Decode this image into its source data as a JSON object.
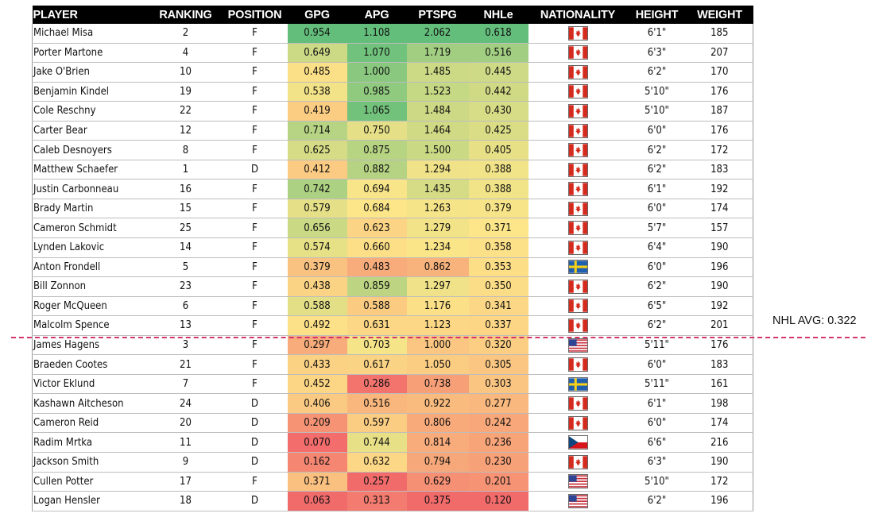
{
  "chart_data": {
    "type": "table",
    "columns": [
      "PLAYER",
      "RANKING",
      "POSITION",
      "GPG",
      "APG",
      "PTSPG",
      "NHLe",
      "NATIONALITY",
      "HEIGHT",
      "WEIGHT"
    ],
    "heatmap_columns": [
      "GPG",
      "APG",
      "PTSPG",
      "NHLe"
    ],
    "rows": [
      {
        "player": "Michael Misa",
        "ranking": "2",
        "position": "F",
        "gpg": "0.954",
        "apg": "1.108",
        "ptspg": "2.062",
        "nhle": "0.618",
        "nationality": "canada-flag-icon",
        "height": "6'1\"",
        "weight": "185"
      },
      {
        "player": "Porter Martone",
        "ranking": "4",
        "position": "F",
        "gpg": "0.649",
        "apg": "1.070",
        "ptspg": "1.719",
        "nhle": "0.516",
        "nationality": "canada-flag-icon",
        "height": "6'3\"",
        "weight": "207"
      },
      {
        "player": "Jake O'Brien",
        "ranking": "10",
        "position": "F",
        "gpg": "0.485",
        "apg": "1.000",
        "ptspg": "1.485",
        "nhle": "0.445",
        "nationality": "canada-flag-icon",
        "height": "6'2\"",
        "weight": "170"
      },
      {
        "player": "Benjamin Kindel",
        "ranking": "19",
        "position": "F",
        "gpg": "0.538",
        "apg": "0.985",
        "ptspg": "1.523",
        "nhle": "0.442",
        "nationality": "canada-flag-icon",
        "height": "5'10\"",
        "weight": "176"
      },
      {
        "player": "Cole Reschny",
        "ranking": "22",
        "position": "F",
        "gpg": "0.419",
        "apg": "1.065",
        "ptspg": "1.484",
        "nhle": "0.430",
        "nationality": "canada-flag-icon",
        "height": "5'10\"",
        "weight": "187"
      },
      {
        "player": "Carter Bear",
        "ranking": "12",
        "position": "F",
        "gpg": "0.714",
        "apg": "0.750",
        "ptspg": "1.464",
        "nhle": "0.425",
        "nationality": "canada-flag-icon",
        "height": "6'0\"",
        "weight": "176"
      },
      {
        "player": "Caleb Desnoyers",
        "ranking": "8",
        "position": "F",
        "gpg": "0.625",
        "apg": "0.875",
        "ptspg": "1.500",
        "nhle": "0.405",
        "nationality": "canada-flag-icon",
        "height": "6'2\"",
        "weight": "172"
      },
      {
        "player": "Matthew Schaefer",
        "ranking": "1",
        "position": "D",
        "gpg": "0.412",
        "apg": "0.882",
        "ptspg": "1.294",
        "nhle": "0.388",
        "nationality": "canada-flag-icon",
        "height": "6'2\"",
        "weight": "183"
      },
      {
        "player": "Justin Carbonneau",
        "ranking": "16",
        "position": "F",
        "gpg": "0.742",
        "apg": "0.694",
        "ptspg": "1.435",
        "nhle": "0.388",
        "nationality": "canada-flag-icon",
        "height": "6'1\"",
        "weight": "192"
      },
      {
        "player": "Brady Martin",
        "ranking": "15",
        "position": "F",
        "gpg": "0.579",
        "apg": "0.684",
        "ptspg": "1.263",
        "nhle": "0.379",
        "nationality": "canada-flag-icon",
        "height": "6'0\"",
        "weight": "174"
      },
      {
        "player": "Cameron Schmidt",
        "ranking": "25",
        "position": "F",
        "gpg": "0.656",
        "apg": "0.623",
        "ptspg": "1.279",
        "nhle": "0.371",
        "nationality": "canada-flag-icon",
        "height": "5'7\"",
        "weight": "157"
      },
      {
        "player": "Lynden Lakovic",
        "ranking": "14",
        "position": "F",
        "gpg": "0.574",
        "apg": "0.660",
        "ptspg": "1.234",
        "nhle": "0.358",
        "nationality": "canada-flag-icon",
        "height": "6'4\"",
        "weight": "190"
      },
      {
        "player": "Anton Frondell",
        "ranking": "5",
        "position": "F",
        "gpg": "0.379",
        "apg": "0.483",
        "ptspg": "0.862",
        "nhle": "0.353",
        "nationality": "sweden-flag-icon",
        "height": "6'0\"",
        "weight": "196"
      },
      {
        "player": "Bill Zonnon",
        "ranking": "23",
        "position": "F",
        "gpg": "0.438",
        "apg": "0.859",
        "ptspg": "1.297",
        "nhle": "0.350",
        "nationality": "canada-flag-icon",
        "height": "6'2\"",
        "weight": "190"
      },
      {
        "player": "Roger McQueen",
        "ranking": "6",
        "position": "F",
        "gpg": "0.588",
        "apg": "0.588",
        "ptspg": "1.176",
        "nhle": "0.341",
        "nationality": "canada-flag-icon",
        "height": "6'5\"",
        "weight": "192"
      },
      {
        "player": "Malcolm Spence",
        "ranking": "13",
        "position": "F",
        "gpg": "0.492",
        "apg": "0.631",
        "ptspg": "1.123",
        "nhle": "0.337",
        "nationality": "canada-flag-icon",
        "height": "6'2\"",
        "weight": "201"
      },
      {
        "player": "James Hagens",
        "ranking": "3",
        "position": "F",
        "gpg": "0.297",
        "apg": "0.703",
        "ptspg": "1.000",
        "nhle": "0.320",
        "nationality": "usa-flag-icon",
        "height": "5'11\"",
        "weight": "176"
      },
      {
        "player": "Braeden Cootes",
        "ranking": "21",
        "position": "F",
        "gpg": "0.433",
        "apg": "0.617",
        "ptspg": "1.050",
        "nhle": "0.305",
        "nationality": "canada-flag-icon",
        "height": "6'0\"",
        "weight": "183"
      },
      {
        "player": "Victor Eklund",
        "ranking": "7",
        "position": "F",
        "gpg": "0.452",
        "apg": "0.286",
        "ptspg": "0.738",
        "nhle": "0.303",
        "nationality": "sweden-flag-icon",
        "height": "5'11\"",
        "weight": "161"
      },
      {
        "player": "Kashawn Aitcheson",
        "ranking": "24",
        "position": "D",
        "gpg": "0.406",
        "apg": "0.516",
        "ptspg": "0.922",
        "nhle": "0.277",
        "nationality": "canada-flag-icon",
        "height": "6'1\"",
        "weight": "198"
      },
      {
        "player": "Cameron Reid",
        "ranking": "20",
        "position": "D",
        "gpg": "0.209",
        "apg": "0.597",
        "ptspg": "0.806",
        "nhle": "0.242",
        "nationality": "canada-flag-icon",
        "height": "6'0\"",
        "weight": "174"
      },
      {
        "player": "Radim Mrtka",
        "ranking": "11",
        "position": "D",
        "gpg": "0.070",
        "apg": "0.744",
        "ptspg": "0.814",
        "nhle": "0.236",
        "nationality": "czech-flag-icon",
        "height": "6'6\"",
        "weight": "216"
      },
      {
        "player": "Jackson Smith",
        "ranking": "9",
        "position": "D",
        "gpg": "0.162",
        "apg": "0.632",
        "ptspg": "0.794",
        "nhle": "0.230",
        "nationality": "canada-flag-icon",
        "height": "6'3\"",
        "weight": "190"
      },
      {
        "player": "Cullen Potter",
        "ranking": "17",
        "position": "F",
        "gpg": "0.371",
        "apg": "0.257",
        "ptspg": "0.629",
        "nhle": "0.201",
        "nationality": "usa-flag-icon",
        "height": "5'10\"",
        "weight": "172"
      },
      {
        "player": "Logan Hensler",
        "ranking": "18",
        "position": "D",
        "gpg": "0.063",
        "apg": "0.313",
        "ptspg": "0.375",
        "nhle": "0.120",
        "nationality": "usa-flag-icon",
        "height": "6'2\"",
        "weight": "196"
      }
    ],
    "reference_line": {
      "label": "NHL AVG: 0.322",
      "column": "NHLe",
      "value": 0.322,
      "style": "dashed",
      "color": "#d6336c"
    },
    "color_scale": {
      "low": "#f26b6b",
      "mid": "#fde689",
      "high": "#63be7b"
    }
  }
}
